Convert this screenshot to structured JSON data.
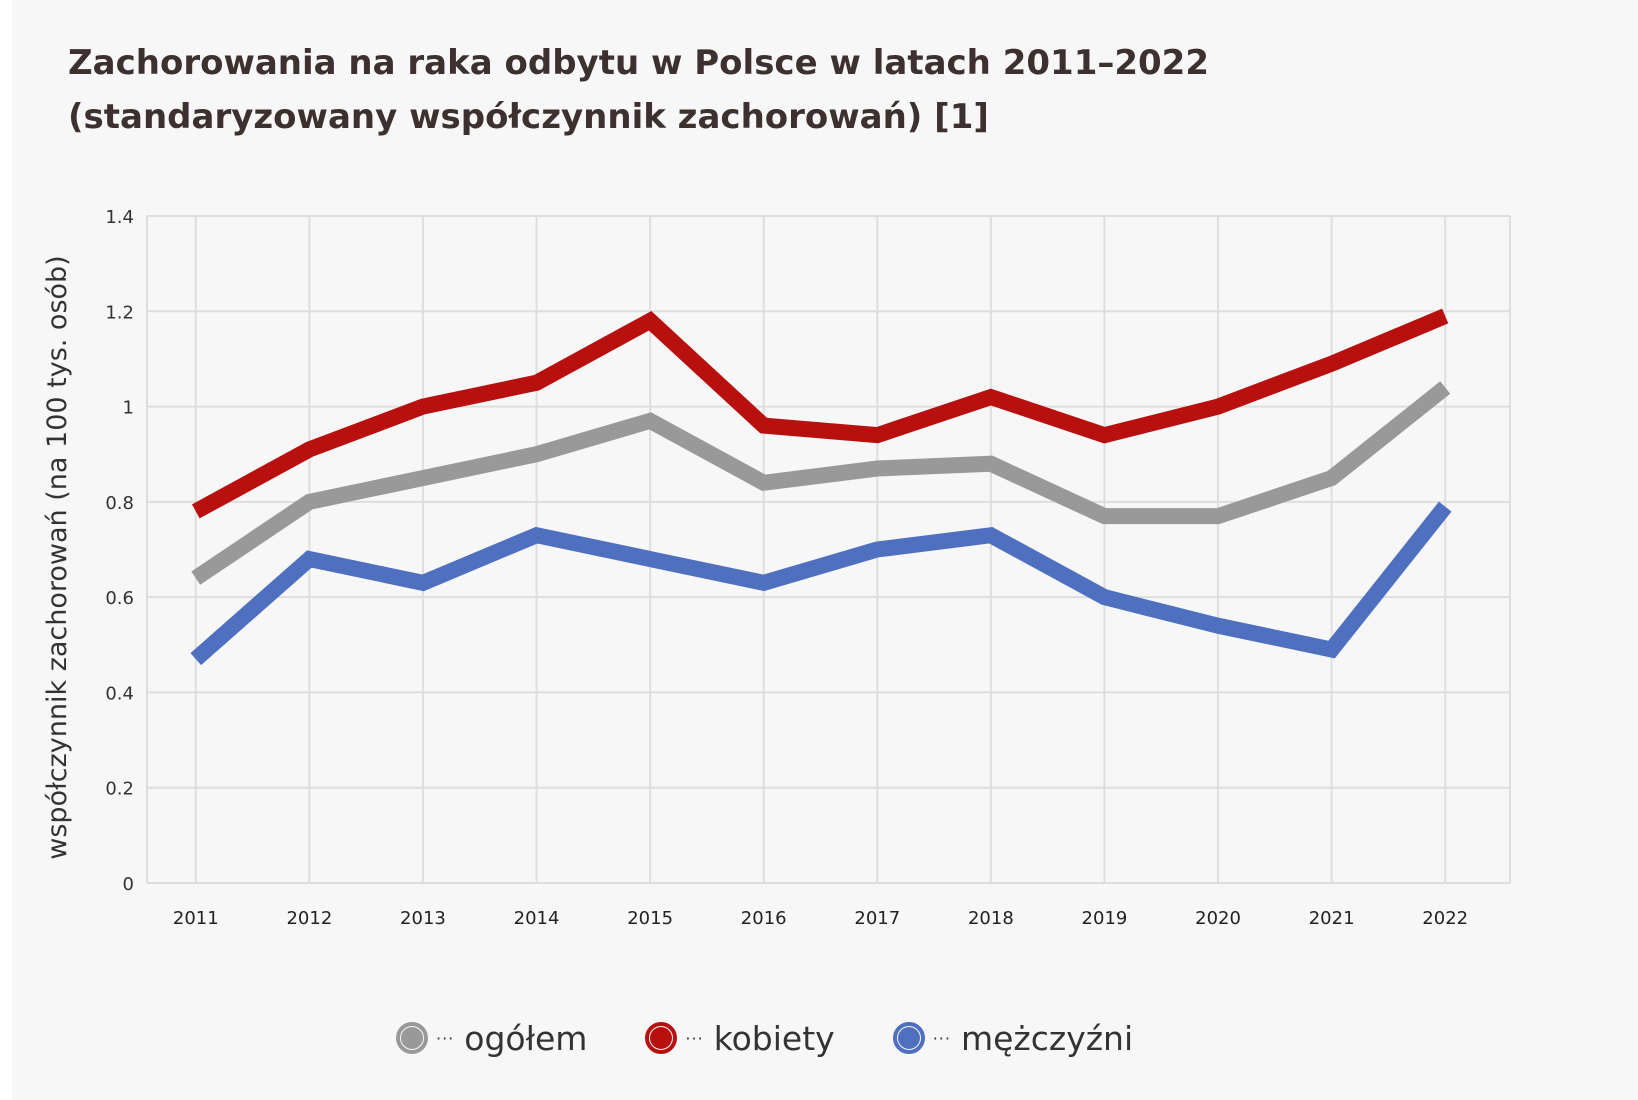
{
  "title_line1": "Zachorowania na raka odbytu w Polsce w latach 2011–2022",
  "title_line2": "(standaryzowany współczynnik zachorowań) [1]",
  "legend": [
    {
      "label": "ogółem",
      "color": "#999999"
    },
    {
      "label": "kobiety",
      "color": "#b80f0f"
    },
    {
      "label": "mężczyźni",
      "color": "#4f6fbf"
    }
  ],
  "legend_dots": "···",
  "chart_data": {
    "type": "line",
    "title": "Zachorowania na raka odbytu w Polsce w latach 2011–2022 (standaryzowany współczynnik zachorowań) [1]",
    "xlabel": "",
    "ylabel": "współczynnik zachorowań (na 100 tys. osób)",
    "categories": [
      "2011",
      "2012",
      "2013",
      "2014",
      "2015",
      "2016",
      "2017",
      "2018",
      "2019",
      "2020",
      "2021",
      "2022"
    ],
    "y_ticks": [
      "0",
      "0.2",
      "0.4",
      "0.6",
      "0.8",
      "1",
      "1.2",
      "1.4"
    ],
    "ylim": [
      0,
      1.4
    ],
    "grid": true,
    "legend_position": "bottom",
    "series": [
      {
        "name": "ogółem",
        "color": "#999999",
        "values": [
          0.64,
          0.8,
          0.85,
          0.9,
          0.97,
          0.84,
          0.87,
          0.88,
          0.77,
          0.77,
          0.85,
          1.04
        ]
      },
      {
        "name": "kobiety",
        "color": "#b80f0f",
        "values": [
          0.78,
          0.91,
          1.0,
          1.05,
          1.18,
          0.96,
          0.94,
          1.02,
          0.94,
          1.0,
          1.09,
          1.19
        ]
      },
      {
        "name": "mężczyźni",
        "color": "#4f6fbf",
        "values": [
          0.47,
          0.68,
          0.63,
          0.73,
          0.68,
          0.63,
          0.7,
          0.73,
          0.6,
          0.54,
          0.49,
          0.79
        ]
      }
    ]
  }
}
